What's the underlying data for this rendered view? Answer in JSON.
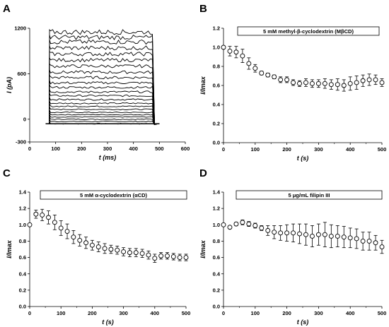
{
  "chart_data": [
    {
      "panel": "A",
      "type": "line",
      "xlabel": "t (ms)",
      "ylabel": "I (pA)",
      "xlim": [
        0,
        600
      ],
      "ylim": [
        -300,
        1200
      ],
      "xticks": [
        0,
        100,
        200,
        300,
        400,
        500,
        600
      ],
      "yticks": [
        -300,
        0,
        600,
        1200
      ],
      "step_start": 75,
      "step_end": 480,
      "trace_levels": [
        -60,
        -30,
        0,
        30,
        60,
        90,
        130,
        170,
        210,
        260,
        310,
        360,
        420,
        480,
        550,
        620,
        700,
        780,
        860,
        940,
        1020,
        1080,
        1150
      ],
      "baseline": -60
    },
    {
      "panel": "B",
      "type": "scatter",
      "legend": "5 mM methyl-β-cyclodextrin (MβCD)",
      "xlabel": "t (s)",
      "ylabel": "I/Imax",
      "xlim": [
        0,
        500
      ],
      "ylim": [
        0.0,
        1.2
      ],
      "xticks": [
        0,
        100,
        200,
        300,
        400,
        500
      ],
      "yticks": [
        0.0,
        0.2,
        0.4,
        0.6,
        0.8,
        1.0,
        1.2
      ],
      "x": [
        0,
        20,
        40,
        60,
        80,
        100,
        120,
        140,
        160,
        180,
        200,
        220,
        240,
        260,
        280,
        300,
        320,
        340,
        360,
        380,
        400,
        420,
        440,
        460,
        480,
        500
      ],
      "y": [
        1.0,
        0.96,
        0.95,
        0.91,
        0.83,
        0.78,
        0.73,
        0.71,
        0.69,
        0.66,
        0.66,
        0.63,
        0.62,
        0.63,
        0.62,
        0.62,
        0.62,
        0.61,
        0.61,
        0.6,
        0.62,
        0.63,
        0.65,
        0.66,
        0.66,
        0.63
      ],
      "err": [
        0.0,
        0.05,
        0.06,
        0.07,
        0.06,
        0.04,
        0.02,
        0.02,
        0.02,
        0.03,
        0.03,
        0.03,
        0.03,
        0.04,
        0.04,
        0.04,
        0.05,
        0.05,
        0.06,
        0.06,
        0.07,
        0.07,
        0.06,
        0.06,
        0.05,
        0.04
      ]
    },
    {
      "panel": "C",
      "type": "scatter",
      "legend": "5 mM α-cyclodextrin (αCD)",
      "xlabel": "t (s)",
      "ylabel": "I/Imax",
      "xlim": [
        0,
        500
      ],
      "ylim": [
        0.0,
        1.4
      ],
      "xticks": [
        0,
        100,
        200,
        300,
        400,
        500
      ],
      "yticks": [
        0.0,
        0.2,
        0.4,
        0.6,
        0.8,
        1.0,
        1.2,
        1.4
      ],
      "x": [
        0,
        20,
        40,
        60,
        80,
        100,
        120,
        140,
        160,
        180,
        200,
        220,
        240,
        260,
        280,
        300,
        320,
        340,
        360,
        380,
        400,
        420,
        440,
        460,
        480,
        500
      ],
      "y": [
        1.0,
        1.13,
        1.12,
        1.09,
        1.03,
        0.96,
        0.92,
        0.85,
        0.81,
        0.78,
        0.75,
        0.73,
        0.71,
        0.7,
        0.69,
        0.67,
        0.66,
        0.66,
        0.65,
        0.63,
        0.59,
        0.62,
        0.62,
        0.61,
        0.6,
        0.6
      ],
      "err": [
        0.0,
        0.05,
        0.07,
        0.08,
        0.09,
        0.09,
        0.09,
        0.08,
        0.07,
        0.07,
        0.06,
        0.06,
        0.06,
        0.05,
        0.05,
        0.05,
        0.05,
        0.05,
        0.05,
        0.05,
        0.05,
        0.04,
        0.04,
        0.04,
        0.04,
        0.04
      ]
    },
    {
      "panel": "D",
      "type": "scatter",
      "legend": "5 μg/mL filipin III",
      "xlabel": "t (s)",
      "ylabel": "I/Imax",
      "xlim": [
        0,
        500
      ],
      "ylim": [
        0.0,
        1.4
      ],
      "xticks": [
        0,
        100,
        200,
        300,
        400,
        500
      ],
      "yticks": [
        0.0,
        0.2,
        0.4,
        0.6,
        0.8,
        1.0,
        1.2,
        1.4
      ],
      "x": [
        0,
        20,
        40,
        60,
        80,
        100,
        120,
        140,
        160,
        180,
        200,
        220,
        240,
        260,
        280,
        300,
        320,
        340,
        360,
        380,
        400,
        420,
        440,
        460,
        480,
        500
      ],
      "y": [
        1.0,
        0.97,
        1.01,
        1.03,
        1.01,
        0.99,
        0.96,
        0.93,
        0.91,
        0.9,
        0.9,
        0.9,
        0.89,
        0.88,
        0.86,
        0.88,
        0.88,
        0.86,
        0.86,
        0.85,
        0.84,
        0.83,
        0.8,
        0.8,
        0.78,
        0.73
      ],
      "err": [
        0.0,
        0.01,
        0.02,
        0.03,
        0.03,
        0.03,
        0.03,
        0.06,
        0.08,
        0.09,
        0.1,
        0.11,
        0.12,
        0.13,
        0.13,
        0.13,
        0.15,
        0.14,
        0.13,
        0.13,
        0.12,
        0.12,
        0.11,
        0.11,
        0.09,
        0.08
      ]
    }
  ]
}
